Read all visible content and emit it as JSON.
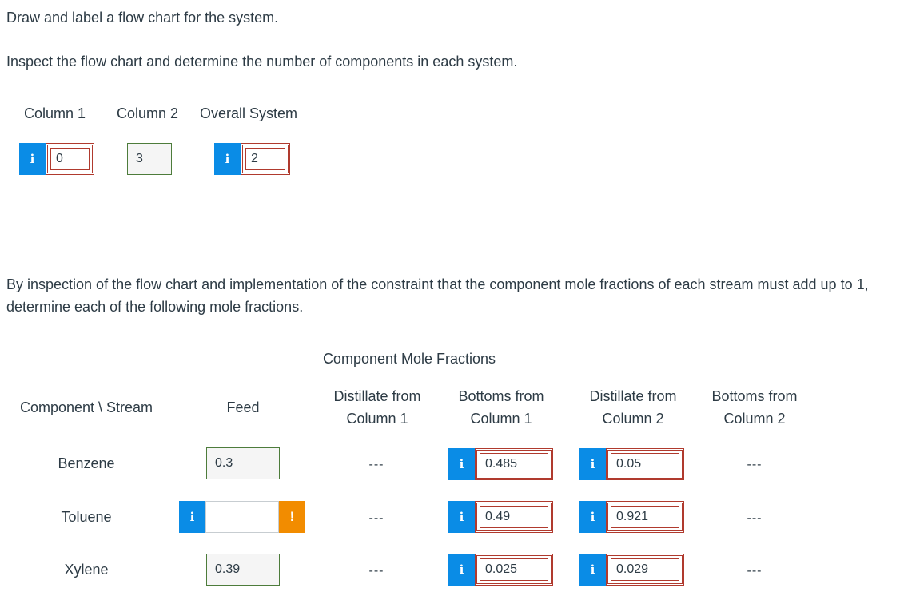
{
  "instructions": {
    "line1": "Draw and label a flow chart for the system.",
    "line2": "Inspect the flow chart and determine the number of components in each system.",
    "line3": "By inspection of the flow chart and implementation of the constraint that the component mole fractions of each stream must add up to 1, determine each of the following mole fractions."
  },
  "components_count": {
    "labels": [
      "Column 1",
      "Column 2",
      "Overall System"
    ],
    "values": [
      "0",
      "3",
      "2"
    ]
  },
  "mole_table": {
    "title": "Component Mole Fractions",
    "corner_header": "Component \\ Stream",
    "feed_header": "Feed",
    "col_headers": [
      {
        "line1": "Distillate from",
        "line2": "Column 1"
      },
      {
        "line1": "Bottoms from",
        "line2": "Column 1"
      },
      {
        "line1": "Distillate from",
        "line2": "Column 2"
      },
      {
        "line1": "Bottoms from",
        "line2": "Column 2"
      }
    ],
    "rows": [
      {
        "name": "Benzene",
        "feed": "0.3",
        "d1": "---",
        "b1": "0.485",
        "d2": "0.05",
        "b2": "---"
      },
      {
        "name": "Toluene",
        "feed": "",
        "d1": "---",
        "b1": "0.49",
        "d2": "0.921",
        "b2": "---"
      },
      {
        "name": "Xylene",
        "feed": "0.39",
        "d1": "---",
        "b1": "0.025",
        "d2": "0.029",
        "b2": "---"
      }
    ]
  },
  "icons": {
    "info": "i",
    "warning": "!"
  },
  "colors": {
    "info_blue": "#0a8ce6",
    "warning_orange": "#f28c00",
    "incorrect_border": "#b03a2e",
    "correct_border": "#4d7c3b"
  }
}
